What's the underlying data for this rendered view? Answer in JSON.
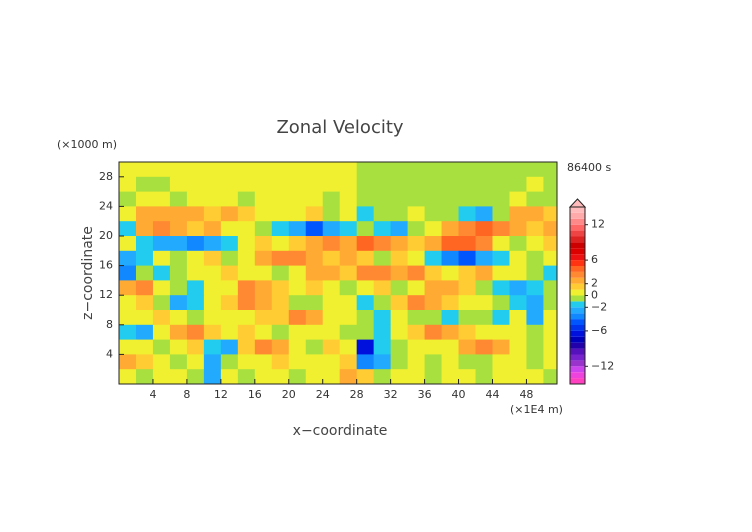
{
  "chart_data": {
    "type": "heatmap",
    "title": "Zonal Velocity",
    "x_label": "x−coordinate",
    "y_label": "z−coordinate",
    "x_unit": "(×1E4 m)",
    "y_unit": "(×1000 m)",
    "time_label": "86400 s",
    "x": [
      1,
      3,
      5,
      7,
      9,
      11,
      13,
      15,
      17,
      19,
      21,
      23,
      25,
      27,
      29,
      31,
      33,
      35,
      37,
      39,
      41,
      43,
      45,
      47,
      49,
      51
    ],
    "y": [
      29,
      27,
      25,
      23,
      21,
      19,
      17,
      15,
      13,
      11,
      9,
      7,
      5,
      3,
      1
    ],
    "values": [
      [
        0.5,
        0.5,
        0.5,
        0.5,
        0.5,
        0.5,
        0.5,
        0.5,
        0.5,
        0.5,
        0.5,
        0.5,
        0.5,
        0.5,
        -0.5,
        -0.5,
        -0.5,
        -0.5,
        -0.5,
        -0.5,
        -0.5,
        -0.5,
        -0.5,
        -0.5,
        -0.5,
        -0.5
      ],
      [
        0.5,
        -0.5,
        -0.5,
        0.5,
        0.5,
        0.5,
        0.5,
        0.5,
        0.5,
        0.5,
        0.5,
        0.5,
        0.5,
        0.5,
        -0.5,
        -0.5,
        -0.5,
        -0.5,
        -0.5,
        -0.5,
        -0.5,
        -0.5,
        -0.5,
        -0.5,
        0.5,
        -0.5
      ],
      [
        -0.5,
        0.5,
        0.5,
        -0.5,
        0.5,
        0.5,
        0.5,
        -0.5,
        0.5,
        0.5,
        0.5,
        0.5,
        -0.5,
        0.5,
        -0.5,
        -0.5,
        -0.5,
        -0.5,
        -0.5,
        -0.5,
        -0.5,
        -0.5,
        -0.5,
        0.5,
        -0.5,
        -0.5
      ],
      [
        0.5,
        2.5,
        2.5,
        2.5,
        2.5,
        1.5,
        2.5,
        1.5,
        0.5,
        0.5,
        0.5,
        1.5,
        -0.5,
        0.5,
        -1.5,
        -0.5,
        -0.5,
        0.5,
        -0.5,
        -0.5,
        -1.5,
        -2.5,
        -0.5,
        2.5,
        2.5,
        1.5
      ],
      [
        -1.5,
        2.5,
        3.5,
        2.5,
        1.5,
        2.5,
        0.5,
        0.5,
        -0.5,
        -1.5,
        -2.5,
        -4.5,
        -2.5,
        -1.5,
        -0.5,
        -1.5,
        -2.5,
        -0.5,
        0.5,
        2.5,
        3.5,
        4.5,
        3.5,
        2.5,
        1.5,
        2.5
      ],
      [
        0.5,
        -1.5,
        -2.5,
        -2.5,
        -3.5,
        -2.5,
        -1.5,
        0.5,
        1.5,
        0.5,
        1.5,
        2.5,
        3.5,
        2.5,
        4.5,
        3.5,
        2.5,
        1.5,
        2.5,
        4.5,
        4.5,
        3.5,
        0.5,
        -0.5,
        0.5,
        1.5
      ],
      [
        -2.5,
        -1.5,
        0.5,
        -0.5,
        0.5,
        1.5,
        -0.5,
        0.5,
        2.5,
        3.5,
        3.5,
        2.5,
        1.5,
        2.5,
        1.5,
        -0.5,
        1.5,
        0.5,
        -1.5,
        -3.5,
        -4.5,
        -2.5,
        -1.5,
        0.5,
        -0.5,
        0.5
      ],
      [
        -3.5,
        -0.5,
        -1.5,
        -0.5,
        0.5,
        0.5,
        1.5,
        0.5,
        0.5,
        -0.5,
        0.5,
        2.5,
        2.5,
        1.5,
        3.5,
        3.5,
        2.5,
        3.5,
        1.5,
        0.5,
        1.5,
        2.5,
        0.5,
        0.5,
        -0.5,
        -1.5
      ],
      [
        2.5,
        3.5,
        0.5,
        -0.5,
        -1.5,
        0.5,
        0.5,
        3.5,
        2.5,
        1.5,
        0.5,
        1.5,
        0.5,
        -0.5,
        0.5,
        1.5,
        -0.5,
        0.5,
        2.5,
        2.5,
        1.5,
        -0.5,
        -1.5,
        -2.5,
        -1.5,
        -0.5
      ],
      [
        0.5,
        1.5,
        -0.5,
        -2.5,
        -1.5,
        0.5,
        1.5,
        3.5,
        2.5,
        1.5,
        -0.5,
        -0.5,
        0.5,
        0.5,
        -1.5,
        -0.5,
        1.5,
        3.5,
        2.5,
        1.5,
        0.5,
        0.5,
        -0.5,
        -1.5,
        -2.5,
        -0.5
      ],
      [
        0.5,
        0.5,
        1.5,
        0.5,
        -0.5,
        0.5,
        0.5,
        0.5,
        1.5,
        1.5,
        3.5,
        2.5,
        0.5,
        0.5,
        -0.5,
        -1.5,
        0.5,
        -0.5,
        -0.5,
        -1.5,
        -0.5,
        -0.5,
        -1.5,
        0.5,
        -2.5,
        0.5
      ],
      [
        -1.5,
        -2.5,
        0.5,
        2.5,
        3.5,
        1.5,
        0.5,
        1.5,
        0.5,
        -0.5,
        0.5,
        0.5,
        0.5,
        -0.5,
        -0.5,
        -1.5,
        0.5,
        1.5,
        3.5,
        2.5,
        1.5,
        0.5,
        0.5,
        0.5,
        -0.5,
        0.5
      ],
      [
        0.5,
        0.5,
        -0.5,
        0.5,
        1.5,
        -1.5,
        -2.5,
        1.5,
        3.5,
        2.5,
        0.5,
        -0.5,
        1.5,
        0.5,
        -6.5,
        -1.5,
        -0.5,
        0.5,
        0.5,
        0.5,
        2.5,
        3.5,
        2.5,
        0.5,
        -0.5,
        0.5
      ],
      [
        2.5,
        1.5,
        0.5,
        -0.5,
        0.5,
        -2.5,
        -0.5,
        0.5,
        0.5,
        1.5,
        0.5,
        0.5,
        0.5,
        1.5,
        -3.5,
        -2.5,
        -0.5,
        0.5,
        -0.5,
        0.5,
        -0.5,
        -0.5,
        0.5,
        0.5,
        -0.5,
        0.5
      ],
      [
        0.5,
        -0.5,
        0.5,
        0.5,
        -0.5,
        -2.5,
        0.5,
        -0.5,
        0.5,
        0.5,
        -0.5,
        0.5,
        0.5,
        2.5,
        1.5,
        -0.5,
        0.5,
        0.5,
        -0.5,
        0.5,
        0.5,
        -0.5,
        0.5,
        0.5,
        0.5,
        -0.5
      ]
    ],
    "xlim": [
      0,
      51.6
    ],
    "ylim": [
      0,
      30
    ],
    "xticks": [
      4,
      8,
      12,
      16,
      20,
      24,
      28,
      32,
      36,
      40,
      44,
      48
    ],
    "yticks": [
      4,
      8,
      12,
      16,
      20,
      24,
      28
    ],
    "levels": [
      -15,
      -14,
      -13,
      -12,
      -11,
      -10,
      -9,
      -8,
      -7,
      -6,
      -5,
      -4,
      -3,
      -2,
      -1,
      0,
      1,
      2,
      3,
      4,
      5,
      6,
      7,
      8,
      9,
      10,
      11,
      12,
      13,
      14,
      15
    ],
    "colors": [
      "#ff40c0",
      "#ee44dd",
      "#cc44ee",
      "#9933cc",
      "#7722cc",
      "#5511bb",
      "#2200aa",
      "#0000bb",
      "#0011dd",
      "#0033ee",
      "#0055ff",
      "#1188ff",
      "#22aaff",
      "#22ccee",
      "#a8e040",
      "#f0f030",
      "#ffcc33",
      "#ffaa33",
      "#ff8833",
      "#ff6622",
      "#ff3311",
      "#ee1111",
      "#dd0000",
      "#cc0000",
      "#dd2222",
      "#ee4444",
      "#ff6666",
      "#ff8888",
      "#ffaaaa",
      "#ffbbbb"
    ],
    "cbar_ticks": [
      12,
      6,
      2,
      0,
      {
        "value": -2,
        "label": "−2"
      },
      {
        "value": -6,
        "label": "−6"
      },
      {
        "value": -12,
        "label": "−12"
      }
    ]
  }
}
